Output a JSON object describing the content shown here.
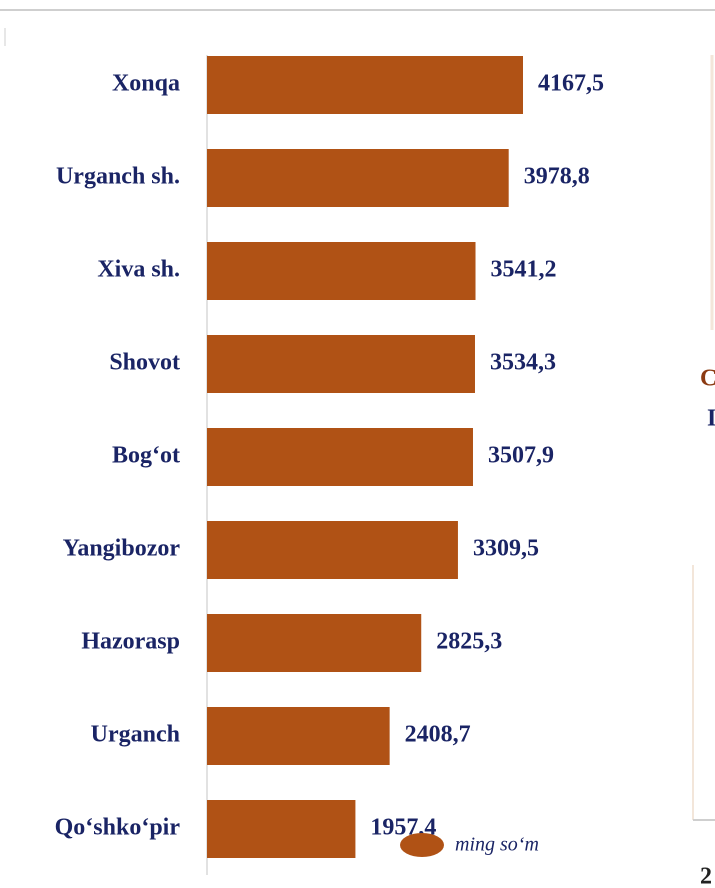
{
  "chart_data": {
    "type": "bar",
    "orientation": "horizontal",
    "categories": [
      "Xonqa",
      "Urganch sh.",
      "Xiva sh.",
      "Shovot",
      "Bog‘ot",
      "Yangibozor",
      "Hazorasp",
      "Urganch",
      "Qo‘shko‘pir"
    ],
    "series": [
      {
        "name": "ming so‘m",
        "color": "#b05215",
        "values": [
          4167.5,
          3978.8,
          3541.2,
          3534.3,
          3507.9,
          3309.5,
          2825.3,
          2408.7,
          1957.4
        ],
        "value_labels": [
          "4167,5",
          "3978,8",
          "3541,2",
          "3534,3",
          "3507,9",
          "3309,5",
          "2825,3",
          "2408,7",
          "1957,4"
        ]
      }
    ]
  },
  "page_fragments": [
    "C",
    "I",
    "2"
  ]
}
